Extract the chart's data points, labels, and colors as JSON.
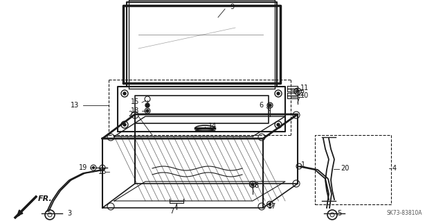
{
  "bg_color": "#ffffff",
  "line_color": "#1a1a1a",
  "label_color": "#111111",
  "watermark": "SK73-83810A",
  "fig_width": 6.4,
  "fig_height": 3.19,
  "dpi": 100
}
